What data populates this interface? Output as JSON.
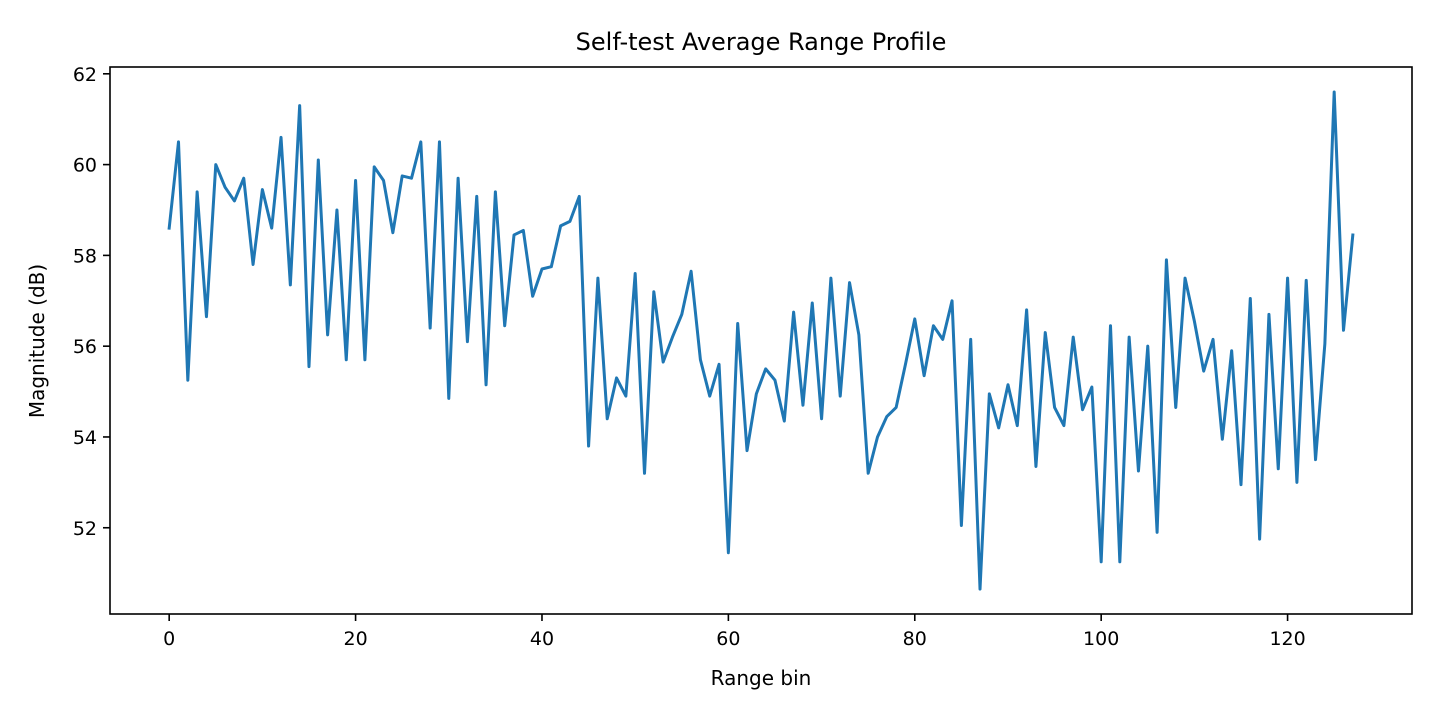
{
  "chart_data": {
    "type": "line",
    "title": "Self-test Average Range Profile",
    "xlabel": "Range bin",
    "ylabel": "Magnitude (dB)",
    "xlim": [
      -6.35,
      133.35
    ],
    "ylim": [
      50.1,
      62.15
    ],
    "xticks": [
      0,
      20,
      40,
      60,
      80,
      100,
      120
    ],
    "yticks": [
      52,
      54,
      56,
      58,
      60,
      62
    ],
    "grid": false,
    "legend": "none",
    "series": [
      {
        "color": "#1f77b4",
        "x": [
          0,
          1,
          2,
          3,
          4,
          5,
          6,
          7,
          8,
          9,
          10,
          11,
          12,
          13,
          14,
          15,
          16,
          17,
          18,
          19,
          20,
          21,
          22,
          23,
          24,
          25,
          26,
          27,
          28,
          29,
          30,
          31,
          32,
          33,
          34,
          35,
          36,
          37,
          38,
          39,
          40,
          41,
          42,
          43,
          44,
          45,
          46,
          47,
          48,
          49,
          50,
          51,
          52,
          53,
          54,
          55,
          56,
          57,
          58,
          59,
          60,
          61,
          62,
          63,
          64,
          65,
          66,
          67,
          68,
          69,
          70,
          71,
          72,
          73,
          74,
          75,
          76,
          77,
          78,
          79,
          80,
          81,
          82,
          83,
          84,
          85,
          86,
          87,
          88,
          89,
          90,
          91,
          92,
          93,
          94,
          95,
          96,
          97,
          98,
          99,
          100,
          101,
          102,
          103,
          104,
          105,
          106,
          107,
          108,
          109,
          110,
          111,
          112,
          113,
          114,
          115,
          116,
          117,
          118,
          119,
          120,
          121,
          122,
          123,
          124,
          125,
          126,
          127
        ],
        "values": [
          58.6,
          60.5,
          55.25,
          59.4,
          56.65,
          60.0,
          59.5,
          59.2,
          59.7,
          57.8,
          59.45,
          58.6,
          60.6,
          57.35,
          61.3,
          55.55,
          60.1,
          56.25,
          59.0,
          55.7,
          59.65,
          55.7,
          59.95,
          59.65,
          58.5,
          59.75,
          59.7,
          60.5,
          56.4,
          60.5,
          54.85,
          59.7,
          56.1,
          59.3,
          55.15,
          59.4,
          56.45,
          58.45,
          58.55,
          57.1,
          57.7,
          57.75,
          58.65,
          58.75,
          59.3,
          53.8,
          57.5,
          54.4,
          55.3,
          54.9,
          57.6,
          53.2,
          57.2,
          55.65,
          56.2,
          56.7,
          57.65,
          55.7,
          54.9,
          55.6,
          51.45,
          56.5,
          53.7,
          54.95,
          55.5,
          55.25,
          54.35,
          56.75,
          54.7,
          56.95,
          54.4,
          57.5,
          54.9,
          57.4,
          56.25,
          53.2,
          54.0,
          54.45,
          54.65,
          55.6,
          56.6,
          55.35,
          56.45,
          56.15,
          57.0,
          52.05,
          56.15,
          50.65,
          54.95,
          54.2,
          55.15,
          54.25,
          56.8,
          53.35,
          56.3,
          54.65,
          54.25,
          56.2,
          54.6,
          55.1,
          51.25,
          56.45,
          51.25,
          56.2,
          53.25,
          56.0,
          51.9,
          57.9,
          54.65,
          57.5,
          56.55,
          55.45,
          56.15,
          53.95,
          55.9,
          52.95,
          57.05,
          51.75,
          56.7,
          53.3,
          57.5,
          53.0,
          57.45,
          53.5,
          56.05,
          61.6,
          56.35,
          58.45
        ]
      }
    ]
  }
}
